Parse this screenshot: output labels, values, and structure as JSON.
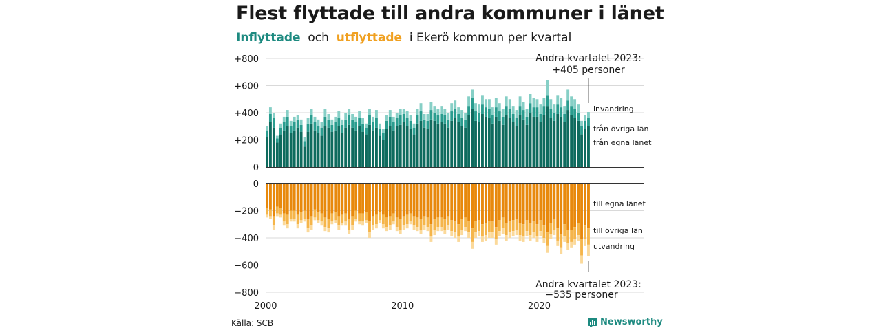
{
  "header": {
    "title": "Flest flyttade till andra kommuner i länet",
    "subtitle_in": "Inflyttade",
    "subtitle_mid": "och",
    "subtitle_out": "utflyttade",
    "subtitle_rest": "i Ekerö kommun per kvartal"
  },
  "footer": {
    "source": "Källa: SCB",
    "brand": "Newsworthy",
    "brand_icon": "bar-chart-logo-icon"
  },
  "colors": {
    "in_local": "#0e6b5e",
    "in_other": "#2a9d8f",
    "in_immig": "#86cfc6",
    "out_local": "#e8890c",
    "out_other": "#f5b54a",
    "out_emig": "#fbd99a",
    "grid": "#d9d9d9",
    "axis": "#333333"
  },
  "chart_data": {
    "type": "bar",
    "stacked": true,
    "x": {
      "start_year": 2000,
      "quarters": 95,
      "ticks": [
        "2000",
        "2010",
        "2020"
      ]
    },
    "top": {
      "ylim": [
        0,
        800
      ],
      "yticks": [
        "0",
        "+200",
        "+400",
        "+600",
        "+800"
      ],
      "series": [
        {
          "name": "från egna länet",
          "values": [
            220,
            330,
            290,
            180,
            240,
            270,
            300,
            250,
            270,
            290,
            260,
            150,
            260,
            320,
            270,
            250,
            230,
            300,
            290,
            260,
            270,
            300,
            250,
            290,
            310,
            290,
            270,
            300,
            260,
            240,
            310,
            270,
            290,
            230,
            200,
            280,
            300,
            270,
            300,
            310,
            330,
            300,
            280,
            240,
            320,
            340,
            290,
            280,
            350,
            340,
            320,
            330,
            320,
            290,
            340,
            360,
            330,
            300,
            290,
            380,
            430,
            340,
            330,
            390,
            370,
            360,
            320,
            370,
            340,
            310,
            380,
            360,
            330,
            300,
            380,
            350,
            310,
            400,
            370,
            370,
            330,
            380,
            450,
            360,
            340,
            390,
            370,
            330,
            420,
            380,
            360,
            340,
            240,
            280,
            300
          ]
        },
        {
          "name": "från övriga län",
          "values": [
            50,
            60,
            70,
            30,
            50,
            60,
            70,
            50,
            60,
            60,
            50,
            40,
            60,
            60,
            60,
            50,
            60,
            70,
            60,
            50,
            60,
            60,
            60,
            60,
            70,
            60,
            60,
            60,
            60,
            50,
            70,
            60,
            70,
            50,
            50,
            60,
            70,
            60,
            60,
            70,
            60,
            60,
            60,
            50,
            60,
            70,
            60,
            60,
            70,
            60,
            60,
            60,
            60,
            60,
            70,
            70,
            60,
            60,
            60,
            70,
            80,
            70,
            70,
            70,
            70,
            70,
            60,
            70,
            70,
            60,
            70,
            70,
            60,
            60,
            70,
            70,
            60,
            70,
            70,
            70,
            60,
            70,
            80,
            70,
            60,
            70,
            70,
            60,
            70,
            70,
            70,
            60,
            60,
            60,
            60
          ]
        },
        {
          "name": "invandring",
          "values": [
            30,
            50,
            40,
            20,
            30,
            40,
            50,
            40,
            40,
            30,
            40,
            30,
            40,
            50,
            40,
            50,
            40,
            60,
            40,
            40,
            40,
            50,
            40,
            50,
            50,
            40,
            40,
            50,
            40,
            30,
            50,
            40,
            60,
            40,
            30,
            40,
            50,
            40,
            40,
            50,
            40,
            50,
            40,
            30,
            50,
            60,
            40,
            50,
            60,
            50,
            50,
            60,
            50,
            50,
            60,
            60,
            50,
            60,
            50,
            70,
            60,
            60,
            60,
            70,
            60,
            70,
            60,
            70,
            60,
            60,
            70,
            70,
            60,
            60,
            70,
            60,
            60,
            70,
            70,
            60,
            70,
            60,
            110,
            70,
            60,
            70,
            70,
            60,
            80,
            70,
            70,
            60,
            40,
            40,
            45
          ]
        }
      ],
      "annotation": [
        "Andra kvartalet 2023:",
        "+405 personer"
      ]
    },
    "bottom": {
      "ylim": [
        -800,
        0
      ],
      "yticks": [
        "0",
        "−200",
        "−400",
        "−600",
        "−800"
      ],
      "series": [
        {
          "name": "till egna länet",
          "values": [
            -180,
            -190,
            -240,
            -170,
            -180,
            -220,
            -230,
            -200,
            -200,
            -230,
            -210,
            -200,
            -260,
            -240,
            -190,
            -210,
            -220,
            -250,
            -260,
            -220,
            -210,
            -240,
            -230,
            -220,
            -260,
            -240,
            -200,
            -220,
            -220,
            -210,
            -280,
            -240,
            -230,
            -210,
            -230,
            -250,
            -240,
            -220,
            -250,
            -260,
            -240,
            -230,
            -220,
            -240,
            -250,
            -260,
            -240,
            -250,
            -300,
            -260,
            -250,
            -250,
            -260,
            -240,
            -270,
            -280,
            -300,
            -260,
            -250,
            -280,
            -330,
            -280,
            -270,
            -300,
            -290,
            -280,
            -280,
            -320,
            -270,
            -250,
            -290,
            -280,
            -270,
            -260,
            -290,
            -300,
            -270,
            -290,
            -280,
            -300,
            -270,
            -310,
            -360,
            -290,
            -260,
            -330,
            -370,
            -300,
            -340,
            -340,
            -320,
            -290,
            -410,
            -310,
            -330
          ]
        },
        {
          "name": "till övriga län",
          "values": [
            -50,
            -50,
            -70,
            -50,
            -50,
            -60,
            -70,
            -60,
            -60,
            -70,
            -60,
            -60,
            -70,
            -70,
            -60,
            -60,
            -60,
            -70,
            -70,
            -60,
            -60,
            -70,
            -60,
            -60,
            -80,
            -70,
            -60,
            -60,
            -60,
            -60,
            -80,
            -70,
            -70,
            -60,
            -70,
            -70,
            -70,
            -60,
            -70,
            -80,
            -70,
            -70,
            -60,
            -70,
            -70,
            -80,
            -70,
            -70,
            -90,
            -80,
            -70,
            -70,
            -80,
            -70,
            -80,
            -80,
            -90,
            -80,
            -70,
            -80,
            -100,
            -80,
            -80,
            -90,
            -90,
            -80,
            -80,
            -90,
            -80,
            -80,
            -90,
            -80,
            -80,
            -80,
            -90,
            -90,
            -80,
            -90,
            -80,
            -90,
            -80,
            -90,
            -100,
            -80,
            -80,
            -90,
            -100,
            -90,
            -100,
            -90,
            -90,
            -90,
            -120,
            -100,
            -120
          ]
        },
        {
          "name": "utvandring",
          "values": [
            -20,
            -20,
            -30,
            -20,
            -20,
            -30,
            -30,
            -20,
            -20,
            -30,
            -20,
            -20,
            -30,
            -30,
            -20,
            -20,
            -30,
            -30,
            -30,
            -20,
            -20,
            -30,
            -20,
            -30,
            -30,
            -30,
            -20,
            -20,
            -30,
            -20,
            -40,
            -30,
            -30,
            -20,
            -30,
            -30,
            -30,
            -20,
            -30,
            -30,
            -30,
            -30,
            -20,
            -30,
            -30,
            -30,
            -30,
            -30,
            -40,
            -40,
            -30,
            -30,
            -30,
            -30,
            -40,
            -40,
            -40,
            -40,
            -30,
            -40,
            -50,
            -40,
            -40,
            -40,
            -40,
            -40,
            -40,
            -40,
            -40,
            -40,
            -40,
            -40,
            -40,
            -40,
            -40,
            -40,
            -40,
            -40,
            -40,
            -40,
            -40,
            -40,
            -50,
            -40,
            -40,
            -40,
            -50,
            -40,
            -50,
            -40,
            -40,
            -40,
            -60,
            -50,
            -85
          ]
        }
      ],
      "annotation": [
        "Andra kvartalet 2023:",
        "−535 personer"
      ]
    }
  }
}
